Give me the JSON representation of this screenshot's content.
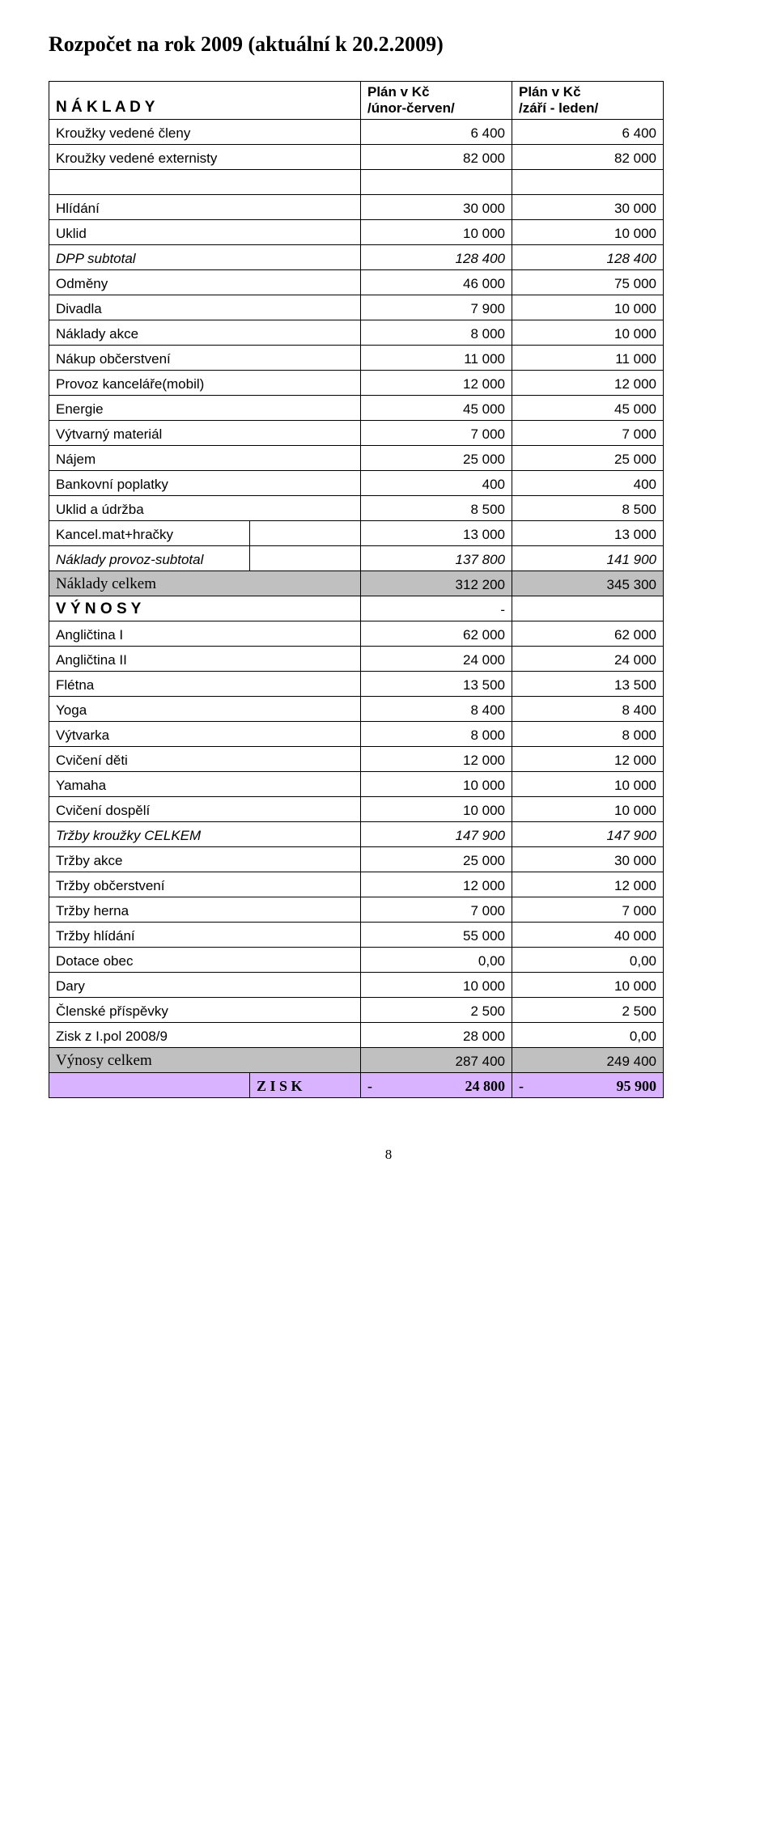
{
  "title": "Rozpočet na rok 2009 (aktuální k 20.2.2009)",
  "header": {
    "naklady": "N Á K L A D Y",
    "plan1_line1": "Plán v Kč",
    "plan1_line2": "/únor-červen/",
    "plan2_line1": "Plán v Kč",
    "plan2_line2": "/září - leden/"
  },
  "rows": [
    {
      "label": "Kroužky vedené členy",
      "v1": "6 400",
      "v2": "6 400"
    },
    {
      "label": "Kroužky vedené externisty",
      "v1": "82 000",
      "v2": "82 000"
    }
  ],
  "rows2": [
    {
      "label": "Hlídání",
      "v1": "30 000",
      "v2": "30 000"
    },
    {
      "label": "Uklid",
      "v1": "10 000",
      "v2": "10 000"
    },
    {
      "label": "DPP subtotal",
      "v1": "128 400",
      "v2": "128 400",
      "italic": true
    },
    {
      "label": "Odměny",
      "v1": "46 000",
      "v2": "75 000"
    },
    {
      "label": "Divadla",
      "v1": "7 900",
      "v2": "10 000"
    },
    {
      "label": "Náklady akce",
      "v1": "8 000",
      "v2": "10 000"
    },
    {
      "label": "Nákup občerstvení",
      "v1": "11 000",
      "v2": "11 000"
    },
    {
      "label": "Provoz kanceláře(mobil)",
      "v1": "12 000",
      "v2": "12 000"
    },
    {
      "label": "Energie",
      "v1": "45 000",
      "v2": "45 000"
    },
    {
      "label": "Výtvarný materiál",
      "v1": "7 000",
      "v2": "7 000"
    },
    {
      "label": "Nájem",
      "v1": "25 000",
      "v2": "25 000"
    },
    {
      "label": "Bankovní poplatky",
      "v1": "400",
      "v2": "400"
    },
    {
      "label": "Uklid a údržba",
      "v1": "8 500",
      "v2": "8 500"
    },
    {
      "label": "Kancel.mat+hračky",
      "v1": "13 000",
      "v2": "13 000"
    },
    {
      "label": "Náklady provoz-subtotal",
      "v1": "137 800",
      "v2": "141 900",
      "italic": true
    }
  ],
  "naklady_celkem": {
    "label": "Náklady celkem",
    "v1": "312 200",
    "v2": "345 300"
  },
  "vynosy_head": "V Ý N O S Y",
  "dash": "-",
  "rows3": [
    {
      "label": " Angličtina I",
      "v1": "62 000",
      "v2": "62 000"
    },
    {
      "label": " Angličtina II",
      "v1": "24 000",
      "v2": "24 000"
    },
    {
      "label": "Flétna",
      "v1": "13 500",
      "v2": "13 500"
    },
    {
      "label": "Yoga",
      "v1": "8 400",
      "v2": "8 400"
    },
    {
      "label": "Výtvarka",
      "v1": "8 000",
      "v2": "8 000"
    },
    {
      "label": "Cvičení děti",
      "v1": "12 000",
      "v2": "12 000"
    },
    {
      "label": "Yamaha",
      "v1": "10 000",
      "v2": "10 000"
    },
    {
      "label": "Cvičení dospělí",
      "v1": "10 000",
      "v2": "10 000"
    },
    {
      "label": "Tržby kroužky CELKEM",
      "v1": "147 900",
      "v2": "147 900",
      "italic": true
    },
    {
      "label": "Tržby akce",
      "v1": "25 000",
      "v2": "30 000"
    },
    {
      "label": "Tržby občerstvení",
      "v1": "12 000",
      "v2": "12 000"
    },
    {
      "label": "Tržby herna",
      "v1": "7 000",
      "v2": "7 000"
    },
    {
      "label": "Tržby hlídání",
      "v1": "55 000",
      "v2": "40 000"
    },
    {
      "label": "Dotace obec",
      "v1": "0,00",
      "v2": "0,00"
    },
    {
      "label": "Dary",
      "v1": "10 000",
      "v2": "10 000"
    },
    {
      "label": "Členské příspěvky",
      "v1": "2 500",
      "v2": "2 500"
    },
    {
      "label": "Zisk z I.pol 2008/9",
      "v1": "28 000",
      "v2": "0,00"
    }
  ],
  "vynosy_celkem": {
    "label": "Výnosy celkem",
    "v1": "287 400",
    "v2": "249 400"
  },
  "zisk": {
    "label": "Z I S K",
    "v1a": "-",
    "v1b": "24 800",
    "v2a": "-",
    "v2b": "95 900"
  },
  "page_number": "8"
}
